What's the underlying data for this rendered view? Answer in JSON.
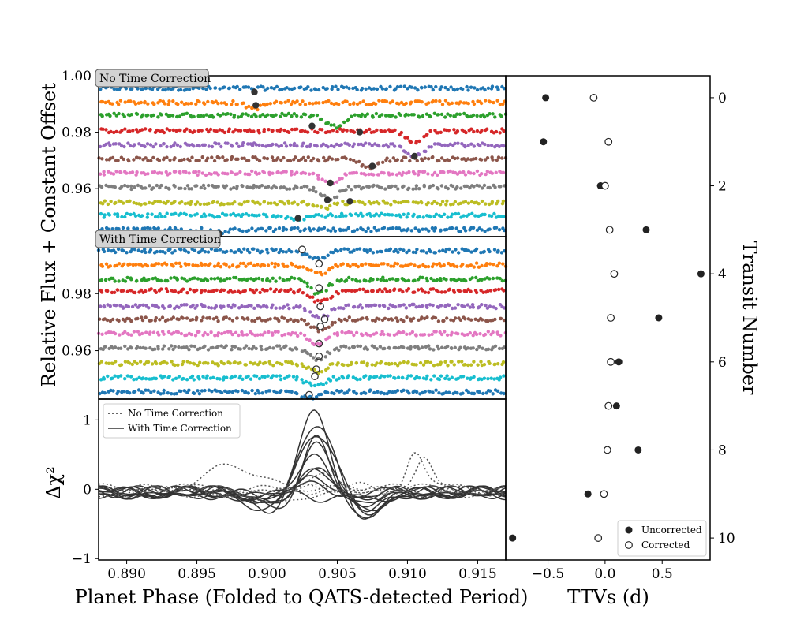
{
  "chart_data": [
    {
      "type": "scatter",
      "panel": "top",
      "annotation": "No Time Correction",
      "ylim": [
        0.943,
        1.0
      ],
      "yticks": [
        "1.00",
        "0.98",
        "0.96"
      ],
      "x_range": [
        0.888,
        0.917
      ],
      "series": [
        {
          "color": "#1f77b4",
          "baseline": 0.9955,
          "transit_phase": 0.8992,
          "depth": 0.0
        },
        {
          "color": "#ff7f0e",
          "baseline": 0.9905,
          "transit_phase": 0.8991,
          "depth": 0.002
        },
        {
          "color": "#2ca02c",
          "baseline": 0.986,
          "transit_phase": 0.9048,
          "depth": 0.004
        },
        {
          "color": "#d62728",
          "baseline": 0.9805,
          "transit_phase": 0.9105,
          "depth": 0.004
        },
        {
          "color": "#9467bd",
          "baseline": 0.9755,
          "transit_phase": 0.9105,
          "depth": 0.004
        },
        {
          "color": "#8c564b",
          "baseline": 0.9705,
          "transit_phase": 0.9073,
          "depth": 0.003
        },
        {
          "color": "#e377c2",
          "baseline": 0.9655,
          "transit_phase": 0.9045,
          "depth": 0.004
        },
        {
          "color": "#7f7f7f",
          "baseline": 0.9605,
          "transit_phase": 0.9045,
          "depth": 0.004
        },
        {
          "color": "#bcbd22",
          "baseline": 0.955,
          "transit_phase": 0.904,
          "depth": 0.002
        },
        {
          "color": "#17becf",
          "baseline": 0.9505,
          "transit_phase": 0.9022,
          "depth": 0.001
        },
        {
          "color": "#1f77b4",
          "baseline": 0.9455,
          "transit_phase": 0.8966,
          "depth": 0.001
        }
      ],
      "markers_filled": [
        [
          0.8991,
          0.9942
        ],
        [
          0.8992,
          0.9895
        ],
        [
          0.9032,
          0.9822
        ],
        [
          0.9066,
          0.98
        ],
        [
          0.9075,
          0.968
        ],
        [
          0.9105,
          0.9715
        ],
        [
          0.9045,
          0.962
        ],
        [
          0.9043,
          0.956
        ],
        [
          0.9059,
          0.9555
        ],
        [
          0.9022,
          0.9495
        ],
        [
          0.8966,
          0.944
        ]
      ]
    },
    {
      "type": "scatter",
      "panel": "middle",
      "annotation": "With Time Correction",
      "ylim": [
        0.943,
        1.0
      ],
      "yticks": [
        "0.98",
        "0.96"
      ],
      "x_range": [
        0.888,
        0.917
      ],
      "series": [
        {
          "color": "#1f77b4",
          "baseline": 0.995,
          "transit_phase": 0.9035,
          "depth": 0.003
        },
        {
          "color": "#ff7f0e",
          "baseline": 0.99,
          "transit_phase": 0.9037,
          "depth": 0.003
        },
        {
          "color": "#2ca02c",
          "baseline": 0.985,
          "transit_phase": 0.9037,
          "depth": 0.005
        },
        {
          "color": "#d62728",
          "baseline": 0.981,
          "transit_phase": 0.9038,
          "depth": 0.004
        },
        {
          "color": "#9467bd",
          "baseline": 0.9755,
          "transit_phase": 0.9038,
          "depth": 0.004
        },
        {
          "color": "#8c564b",
          "baseline": 0.971,
          "transit_phase": 0.9038,
          "depth": 0.004
        },
        {
          "color": "#e377c2",
          "baseline": 0.966,
          "transit_phase": 0.9036,
          "depth": 0.004
        },
        {
          "color": "#7f7f7f",
          "baseline": 0.961,
          "transit_phase": 0.9036,
          "depth": 0.004
        },
        {
          "color": "#bcbd22",
          "baseline": 0.9555,
          "transit_phase": 0.9036,
          "depth": 0.003
        },
        {
          "color": "#17becf",
          "baseline": 0.9505,
          "transit_phase": 0.9034,
          "depth": 0.003
        },
        {
          "color": "#1f77b4",
          "baseline": 0.9455,
          "transit_phase": 0.903,
          "depth": 0.002
        }
      ],
      "markers_open": [
        [
          0.9025,
          0.9955
        ],
        [
          0.9037,
          0.9905
        ],
        [
          0.9037,
          0.982
        ],
        [
          0.9038,
          0.9755
        ],
        [
          0.9041,
          0.971
        ],
        [
          0.9038,
          0.9685
        ],
        [
          0.9037,
          0.9625
        ],
        [
          0.9037,
          0.958
        ],
        [
          0.9035,
          0.9535
        ],
        [
          0.9034,
          0.951
        ],
        [
          0.903,
          0.9445
        ]
      ]
    },
    {
      "type": "line",
      "panel": "bottom",
      "ylabel": "Δχ²",
      "ylim": [
        -1.02,
        1.3
      ],
      "yticks": [
        "1",
        "0",
        "−1"
      ],
      "x_range": [
        0.888,
        0.917
      ],
      "legend": {
        "placement": "top-left",
        "entries": [
          "No Time Correction",
          "With Time Correction"
        ]
      },
      "series": [
        {
          "name": "With Time Correction",
          "style": "solid",
          "center": 0.9035,
          "width": 0.0011,
          "amps": [
            1.2,
            0.95,
            0.9,
            0.85,
            0.72,
            0.55,
            0.4,
            0.3,
            0.2,
            0.1,
            -0.15
          ]
        },
        {
          "name": "No Time Correction",
          "style": "dotted",
          "bumps": [
            [
              0.9105,
              0.55,
              0.0006
            ],
            [
              0.9112,
              0.5,
              0.0006
            ],
            [
              0.8975,
              0.3,
              0.0025
            ],
            [
              0.9005,
              -0.25,
              0.0012
            ],
            [
              0.9045,
              0.25,
              0.0012
            ],
            [
              0.9065,
              0.12,
              0.001
            ]
          ]
        }
      ],
      "xticks": [
        "0.890",
        "0.895",
        "0.900",
        "0.905",
        "0.910",
        "0.915"
      ],
      "xlabel": "Planet Phase (Folded to QATS-detected Period)"
    },
    {
      "type": "scatter",
      "panel": "right",
      "xlabel": "TTVs (d)",
      "ylabel": "Transit Number",
      "xlim": [
        -0.87,
        0.92
      ],
      "ylim": [
        10.5,
        -0.5
      ],
      "xticks": [
        "−0.5",
        "0.0",
        "0.5"
      ],
      "yticks": [
        "0",
        "2",
        "4",
        "6",
        "8",
        "10"
      ],
      "legend": {
        "placement": "bottom-right",
        "entries": [
          "Uncorrected",
          "Corrected"
        ]
      },
      "series": [
        {
          "name": "Uncorrected",
          "marker": "filled",
          "x": [
            -0.52,
            -0.54,
            -0.04,
            0.36,
            0.84,
            0.47,
            0.12,
            0.1,
            0.29,
            -0.15,
            -0.81
          ],
          "y": [
            0,
            1,
            2,
            3,
            4,
            5,
            6,
            7,
            8,
            9,
            10
          ]
        },
        {
          "name": "Corrected",
          "marker": "open",
          "x": [
            -0.1,
            0.03,
            0.0,
            0.04,
            0.08,
            0.05,
            0.05,
            0.03,
            0.02,
            -0.01,
            -0.06
          ],
          "y": [
            0,
            1,
            2,
            3,
            4,
            5,
            6,
            7,
            8,
            9,
            10
          ]
        }
      ]
    }
  ],
  "shared_ylabel": "Relative Flux + Constant Offset"
}
